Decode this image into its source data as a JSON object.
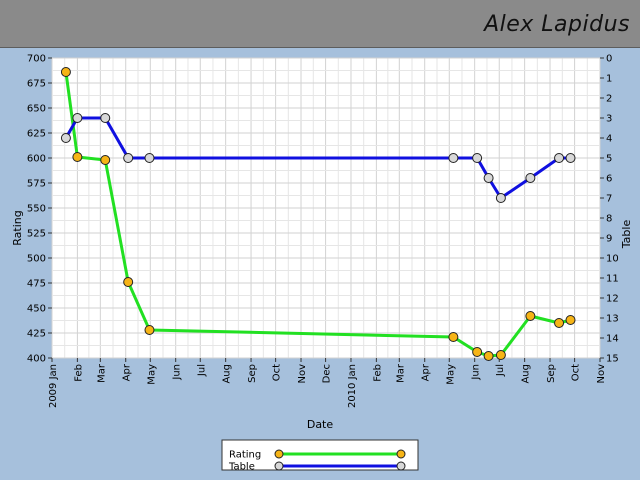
{
  "header": {
    "name": "Alex Lapidus"
  },
  "chart_data": {
    "type": "line",
    "title": "",
    "xlabel": "Date",
    "ylabel_left": "Rating",
    "ylabel_right": "Table",
    "ylim_left": [
      400,
      700
    ],
    "ylim_right": [
      15,
      0
    ],
    "yticks_left": [
      400,
      425,
      450,
      475,
      500,
      525,
      550,
      575,
      600,
      625,
      650,
      675,
      700
    ],
    "yticks_right": [
      0,
      1,
      2,
      3,
      4,
      5,
      6,
      7,
      8,
      9,
      10,
      11,
      12,
      13,
      14,
      15
    ],
    "xlim": [
      "2009-01-01",
      "2010-11-01"
    ],
    "xticks": [
      {
        "date": "2009-01-01",
        "label": "2009 Jan"
      },
      {
        "date": "2009-02-01",
        "label": "Feb"
      },
      {
        "date": "2009-03-01",
        "label": "Mar"
      },
      {
        "date": "2009-04-01",
        "label": "Apr"
      },
      {
        "date": "2009-05-01",
        "label": "May"
      },
      {
        "date": "2009-06-01",
        "label": "Jun"
      },
      {
        "date": "2009-07-01",
        "label": "Jul"
      },
      {
        "date": "2009-08-01",
        "label": "Aug"
      },
      {
        "date": "2009-09-01",
        "label": "Sep"
      },
      {
        "date": "2009-10-01",
        "label": "Oct"
      },
      {
        "date": "2009-11-01",
        "label": "Nov"
      },
      {
        "date": "2009-12-01",
        "label": "Dec"
      },
      {
        "date": "2010-01-01",
        "label": "2010 Jan"
      },
      {
        "date": "2010-02-01",
        "label": "Feb"
      },
      {
        "date": "2010-03-01",
        "label": "Mar"
      },
      {
        "date": "2010-04-01",
        "label": "Apr"
      },
      {
        "date": "2010-05-01",
        "label": "May"
      },
      {
        "date": "2010-06-01",
        "label": "Jun"
      },
      {
        "date": "2010-07-01",
        "label": "Jul"
      },
      {
        "date": "2010-08-01",
        "label": "Aug"
      },
      {
        "date": "2010-09-01",
        "label": "Sep"
      },
      {
        "date": "2010-10-01",
        "label": "Oct"
      },
      {
        "date": "2010-11-01",
        "label": "Nov"
      }
    ],
    "grid": true,
    "legend_position": "bottom-center",
    "series": [
      {
        "name": "Rating",
        "axis": "left",
        "color": "#22e022",
        "marker_color": "#f6b416",
        "points": [
          {
            "x": "2009-01-18",
            "y": 686
          },
          {
            "x": "2009-02-01",
            "y": 601
          },
          {
            "x": "2009-03-07",
            "y": 598
          },
          {
            "x": "2009-04-04",
            "y": 476
          },
          {
            "x": "2009-04-30",
            "y": 428
          },
          {
            "x": "2010-05-06",
            "y": 421
          },
          {
            "x": "2010-06-04",
            "y": 406
          },
          {
            "x": "2010-06-18",
            "y": 402
          },
          {
            "x": "2010-07-03",
            "y": 403
          },
          {
            "x": "2010-08-08",
            "y": 442
          },
          {
            "x": "2010-09-12",
            "y": 435
          },
          {
            "x": "2010-09-26",
            "y": 438
          }
        ]
      },
      {
        "name": "Table",
        "axis": "right",
        "color": "#1010e0",
        "marker_color": "#d8d8d8",
        "points": [
          {
            "x": "2009-01-18",
            "y": 4
          },
          {
            "x": "2009-02-01",
            "y": 3
          },
          {
            "x": "2009-03-07",
            "y": 3
          },
          {
            "x": "2009-04-04",
            "y": 5
          },
          {
            "x": "2009-04-30",
            "y": 5
          },
          {
            "x": "2010-05-06",
            "y": 5
          },
          {
            "x": "2010-06-04",
            "y": 5
          },
          {
            "x": "2010-06-18",
            "y": 6
          },
          {
            "x": "2010-07-03",
            "y": 7
          },
          {
            "x": "2010-08-08",
            "y": 6
          },
          {
            "x": "2010-09-12",
            "y": 5
          },
          {
            "x": "2010-09-26",
            "y": 5
          }
        ]
      }
    ]
  }
}
